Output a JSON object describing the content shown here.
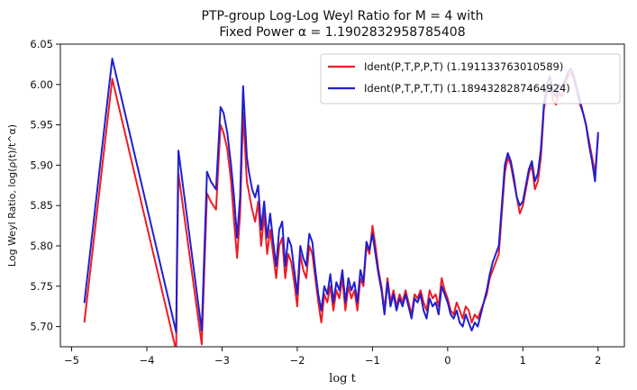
{
  "chart_data": {
    "type": "line",
    "title_line1": "PTP-group Log-Log Weyl Ratio for M = 4 with",
    "title_line2": "Fixed Power α = 1.1902832958785408",
    "xlabel": "log t",
    "ylabel": "Log Weyl Ratio, log(ρ(t)/t^α)",
    "xlim": [
      -5.15,
      2.35
    ],
    "ylim": [
      5.675,
      6.05
    ],
    "xticks": [
      -5,
      -4,
      -3,
      -2,
      -1,
      0,
      1,
      2
    ],
    "xtick_labels": [
      "−5",
      "−4",
      "−3",
      "−2",
      "−1",
      "0",
      "1",
      "2"
    ],
    "yticks": [
      5.7,
      5.75,
      5.8,
      5.85,
      5.9,
      5.95,
      6.0,
      6.05
    ],
    "ytick_labels": [
      "5.70",
      "5.75",
      "5.80",
      "5.85",
      "5.90",
      "5.95",
      "6.00",
      "6.05"
    ],
    "legend_position": "top-right",
    "series": [
      {
        "name": "Ident(P,T,P,P,T) (1.191133763010589)",
        "color": "#ee1c25",
        "x": [
          -4.83,
          -4.46,
          -3.61,
          -3.6,
          -3.58,
          -3.27,
          -3.2,
          -3.15,
          -3.08,
          -3.02,
          -2.98,
          -2.93,
          -2.88,
          -2.84,
          -2.8,
          -2.76,
          -2.72,
          -2.67,
          -2.64,
          -2.6,
          -2.56,
          -2.52,
          -2.48,
          -2.44,
          -2.4,
          -2.36,
          -2.32,
          -2.28,
          -2.24,
          -2.2,
          -2.16,
          -2.12,
          -2.08,
          -2.04,
          -2.0,
          -1.96,
          -1.92,
          -1.88,
          -1.84,
          -1.8,
          -1.76,
          -1.72,
          -1.68,
          -1.64,
          -1.6,
          -1.56,
          -1.52,
          -1.48,
          -1.44,
          -1.4,
          -1.36,
          -1.32,
          -1.28,
          -1.24,
          -1.2,
          -1.16,
          -1.12,
          -1.08,
          -1.04,
          -1.0,
          -0.96,
          -0.92,
          -0.88,
          -0.84,
          -0.8,
          -0.76,
          -0.72,
          -0.68,
          -0.64,
          -0.6,
          -0.56,
          -0.52,
          -0.48,
          -0.44,
          -0.4,
          -0.36,
          -0.32,
          -0.28,
          -0.24,
          -0.2,
          -0.16,
          -0.12,
          -0.08,
          -0.04,
          0.0,
          0.04,
          0.08,
          0.12,
          0.16,
          0.2,
          0.24,
          0.28,
          0.32,
          0.36,
          0.4,
          0.44,
          0.48,
          0.52,
          0.56,
          0.6,
          0.64,
          0.68,
          0.72,
          0.76,
          0.8,
          0.84,
          0.88,
          0.92,
          0.96,
          1.0,
          1.04,
          1.08,
          1.12,
          1.16,
          1.2,
          1.24,
          1.28,
          1.32,
          1.36,
          1.4,
          1.44,
          1.48,
          1.52,
          1.56,
          1.6,
          1.64,
          1.68,
          1.72,
          1.76,
          1.8,
          1.84,
          1.88,
          1.92,
          1.96,
          2.0
        ],
        "y": [
          5.706,
          6.007,
          5.67,
          5.76,
          5.89,
          5.678,
          5.865,
          5.855,
          5.845,
          5.95,
          5.94,
          5.92,
          5.88,
          5.83,
          5.785,
          5.84,
          5.965,
          5.88,
          5.865,
          5.845,
          5.83,
          5.855,
          5.8,
          5.84,
          5.79,
          5.82,
          5.79,
          5.76,
          5.8,
          5.81,
          5.76,
          5.79,
          5.78,
          5.755,
          5.725,
          5.79,
          5.77,
          5.76,
          5.8,
          5.79,
          5.76,
          5.73,
          5.705,
          5.74,
          5.73,
          5.75,
          5.72,
          5.745,
          5.735,
          5.76,
          5.72,
          5.75,
          5.735,
          5.745,
          5.72,
          5.76,
          5.75,
          5.8,
          5.79,
          5.825,
          5.8,
          5.77,
          5.75,
          5.72,
          5.76,
          5.73,
          5.745,
          5.725,
          5.74,
          5.73,
          5.745,
          5.73,
          5.715,
          5.74,
          5.735,
          5.745,
          5.73,
          5.72,
          5.745,
          5.735,
          5.74,
          5.725,
          5.76,
          5.745,
          5.735,
          5.72,
          5.715,
          5.73,
          5.72,
          5.71,
          5.725,
          5.72,
          5.705,
          5.715,
          5.71,
          5.72,
          5.73,
          5.74,
          5.76,
          5.77,
          5.78,
          5.79,
          5.84,
          5.89,
          5.91,
          5.9,
          5.88,
          5.86,
          5.84,
          5.85,
          5.87,
          5.89,
          5.9,
          5.87,
          5.88,
          5.91,
          5.97,
          5.99,
          6.0,
          5.98,
          5.975,
          5.99,
          5.985,
          6.0,
          6.01,
          6.015,
          6.005,
          5.99,
          5.975,
          5.965,
          5.95,
          5.93,
          5.91,
          5.89,
          5.935
        ]
      },
      {
        "name": "Ident(P,T,P,T,T) (1.1894328287464924)",
        "color": "#1f1fd2",
        "x": [
          -4.83,
          -4.46,
          -3.61,
          -3.6,
          -3.58,
          -3.27,
          -3.2,
          -3.15,
          -3.08,
          -3.02,
          -2.98,
          -2.93,
          -2.88,
          -2.84,
          -2.8,
          -2.76,
          -2.72,
          -2.67,
          -2.64,
          -2.6,
          -2.56,
          -2.52,
          -2.48,
          -2.44,
          -2.4,
          -2.36,
          -2.32,
          -2.28,
          -2.24,
          -2.2,
          -2.16,
          -2.12,
          -2.08,
          -2.04,
          -2.0,
          -1.96,
          -1.92,
          -1.88,
          -1.84,
          -1.8,
          -1.76,
          -1.72,
          -1.68,
          -1.64,
          -1.6,
          -1.56,
          -1.52,
          -1.48,
          -1.44,
          -1.4,
          -1.36,
          -1.32,
          -1.28,
          -1.24,
          -1.2,
          -1.16,
          -1.12,
          -1.08,
          -1.04,
          -1.0,
          -0.96,
          -0.92,
          -0.88,
          -0.84,
          -0.8,
          -0.76,
          -0.72,
          -0.68,
          -0.64,
          -0.6,
          -0.56,
          -0.52,
          -0.48,
          -0.44,
          -0.4,
          -0.36,
          -0.32,
          -0.28,
          -0.24,
          -0.2,
          -0.16,
          -0.12,
          -0.08,
          -0.04,
          0.0,
          0.04,
          0.08,
          0.12,
          0.16,
          0.2,
          0.24,
          0.28,
          0.32,
          0.36,
          0.4,
          0.44,
          0.48,
          0.52,
          0.56,
          0.6,
          0.64,
          0.68,
          0.72,
          0.76,
          0.8,
          0.84,
          0.88,
          0.92,
          0.96,
          1.0,
          1.04,
          1.08,
          1.12,
          1.16,
          1.2,
          1.24,
          1.28,
          1.32,
          1.36,
          1.4,
          1.44,
          1.48,
          1.52,
          1.56,
          1.6,
          1.64,
          1.68,
          1.72,
          1.76,
          1.8,
          1.84,
          1.88,
          1.92,
          1.96,
          2.0
        ],
        "y": [
          5.73,
          6.032,
          5.693,
          5.78,
          5.918,
          5.695,
          5.892,
          5.88,
          5.87,
          5.972,
          5.965,
          5.94,
          5.9,
          5.86,
          5.81,
          5.86,
          5.998,
          5.91,
          5.89,
          5.87,
          5.86,
          5.875,
          5.82,
          5.855,
          5.81,
          5.84,
          5.805,
          5.775,
          5.82,
          5.83,
          5.775,
          5.81,
          5.8,
          5.77,
          5.74,
          5.8,
          5.785,
          5.775,
          5.815,
          5.805,
          5.77,
          5.74,
          5.72,
          5.75,
          5.74,
          5.765,
          5.73,
          5.755,
          5.745,
          5.77,
          5.73,
          5.76,
          5.745,
          5.755,
          5.73,
          5.77,
          5.755,
          5.805,
          5.795,
          5.815,
          5.79,
          5.765,
          5.745,
          5.715,
          5.755,
          5.725,
          5.74,
          5.72,
          5.735,
          5.725,
          5.74,
          5.725,
          5.71,
          5.735,
          5.73,
          5.74,
          5.72,
          5.71,
          5.735,
          5.725,
          5.73,
          5.715,
          5.75,
          5.74,
          5.73,
          5.715,
          5.71,
          5.72,
          5.705,
          5.7,
          5.715,
          5.705,
          5.695,
          5.705,
          5.7,
          5.715,
          5.73,
          5.745,
          5.765,
          5.78,
          5.79,
          5.8,
          5.85,
          5.9,
          5.915,
          5.905,
          5.885,
          5.86,
          5.85,
          5.855,
          5.875,
          5.895,
          5.905,
          5.88,
          5.89,
          5.92,
          5.975,
          6.0,
          6.01,
          5.99,
          5.985,
          6.0,
          5.995,
          6.005,
          6.015,
          6.02,
          6.01,
          5.995,
          5.98,
          5.965,
          5.95,
          5.925,
          5.905,
          5.88,
          5.94
        ]
      }
    ]
  }
}
